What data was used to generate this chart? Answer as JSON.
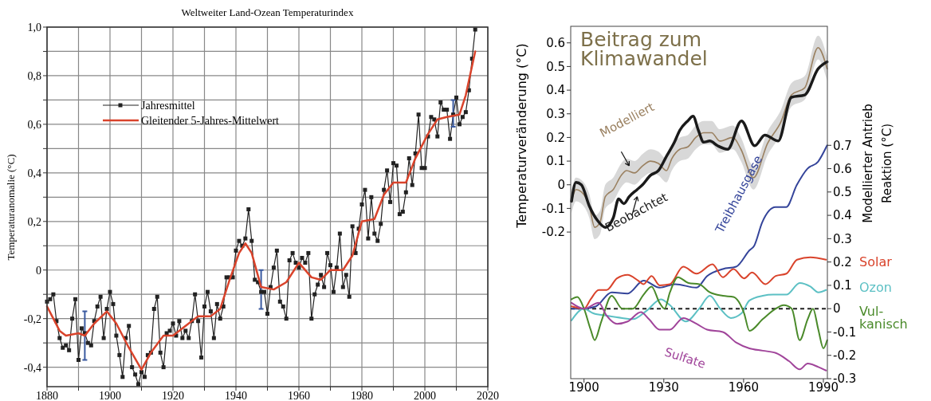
{
  "chart_data": [
    {
      "type": "line",
      "title": "Weltweiter Land-Ozean Temperaturindex",
      "ylabel": "Temperaturanomalie (°C)",
      "xlim": [
        1880,
        2020
      ],
      "ylim": [
        -0.48,
        1.0
      ],
      "xticks": [
        1880,
        {
          "value": 1890,
          "label": null
        },
        1900,
        {
          "value": 1910,
          "label": null
        },
        1920,
        {
          "value": 1930,
          "label": null
        },
        1940,
        {
          "value": 1950,
          "label": null
        },
        1960,
        {
          "value": 1970,
          "label": null
        },
        1980,
        {
          "value": 1990,
          "label": null
        },
        2000,
        {
          "value": 2010,
          "label": null
        },
        2020
      ],
      "yticks": [
        {
          "value": -0.4,
          "label": "-0,4"
        },
        {
          "value": -0.3,
          "label": null
        },
        {
          "value": -0.2,
          "label": "-0,2"
        },
        {
          "value": -0.1,
          "label": null
        },
        0,
        {
          "value": 0.1,
          "label": null
        },
        {
          "value": 0.2,
          "label": "0,2"
        },
        {
          "value": 0.3,
          "label": null
        },
        {
          "value": 0.4,
          "label": "0,4"
        },
        {
          "value": 0.5,
          "label": null
        },
        {
          "value": 0.6,
          "label": "0,6"
        },
        {
          "value": 0.7,
          "label": null
        },
        {
          "value": 0.8,
          "label": "0,8"
        },
        {
          "value": 0.9,
          "label": null
        },
        {
          "value": 1.0,
          "label": "1,0"
        }
      ],
      "grid": true,
      "legend": "top left",
      "series": [
        {
          "name": "Jahresmittel",
          "color": "#222222",
          "marker": "square",
          "x": [
            1880,
            1881,
            1882,
            1883,
            1884,
            1885,
            1886,
            1887,
            1888,
            1889,
            1890,
            1891,
            1892,
            1893,
            1894,
            1895,
            1896,
            1897,
            1898,
            1899,
            1900,
            1901,
            1902,
            1903,
            1904,
            1905,
            1906,
            1907,
            1908,
            1909,
            1910,
            1911,
            1912,
            1913,
            1914,
            1915,
            1916,
            1917,
            1918,
            1919,
            1920,
            1921,
            1922,
            1923,
            1924,
            1925,
            1926,
            1927,
            1928,
            1929,
            1930,
            1931,
            1932,
            1933,
            1934,
            1935,
            1936,
            1937,
            1938,
            1939,
            1940,
            1941,
            1942,
            1943,
            1944,
            1945,
            1946,
            1947,
            1948,
            1949,
            1950,
            1951,
            1952,
            1953,
            1954,
            1955,
            1956,
            1957,
            1958,
            1959,
            1960,
            1961,
            1962,
            1963,
            1964,
            1965,
            1966,
            1967,
            1968,
            1969,
            1970,
            1971,
            1972,
            1973,
            1974,
            1975,
            1976,
            1977,
            1978,
            1979,
            1980,
            1981,
            1982,
            1983,
            1984,
            1985,
            1986,
            1987,
            1988,
            1989,
            1990,
            1991,
            1992,
            1993,
            1994,
            1995,
            1996,
            1997,
            1998,
            1999,
            2000,
            2001,
            2002,
            2003,
            2004,
            2005,
            2006,
            2007,
            2008,
            2009,
            2010,
            2011,
            2012,
            2013,
            2014,
            2015,
            2016
          ],
          "values": [
            -0.13,
            -0.12,
            -0.1,
            -0.21,
            -0.28,
            -0.32,
            -0.31,
            -0.33,
            -0.2,
            -0.12,
            -0.37,
            -0.24,
            -0.26,
            -0.3,
            -0.31,
            -0.21,
            -0.15,
            -0.11,
            -0.28,
            -0.16,
            -0.09,
            -0.14,
            -0.27,
            -0.35,
            -0.44,
            -0.28,
            -0.23,
            -0.4,
            -0.43,
            -0.47,
            -0.42,
            -0.44,
            -0.35,
            -0.34,
            -0.16,
            -0.11,
            -0.34,
            -0.4,
            -0.26,
            -0.25,
            -0.22,
            -0.27,
            -0.21,
            -0.28,
            -0.25,
            -0.28,
            -0.21,
            -0.1,
            -0.21,
            -0.36,
            -0.15,
            -0.09,
            -0.17,
            -0.28,
            -0.14,
            -0.2,
            -0.15,
            -0.03,
            -0.03,
            -0.03,
            0.08,
            0.12,
            0.1,
            0.13,
            0.25,
            0.12,
            -0.04,
            -0.05,
            -0.09,
            -0.09,
            -0.18,
            -0.07,
            0.01,
            0.08,
            -0.13,
            -0.15,
            -0.2,
            0.04,
            0.07,
            0.03,
            0.01,
            0.05,
            0.03,
            0.07,
            -0.2,
            -0.1,
            -0.06,
            -0.02,
            -0.07,
            0.07,
            0.02,
            -0.09,
            0.01,
            0.15,
            -0.07,
            -0.02,
            -0.11,
            0.18,
            0.07,
            0.17,
            0.27,
            0.33,
            0.13,
            0.3,
            0.15,
            0.12,
            0.19,
            0.33,
            0.41,
            0.28,
            0.44,
            0.43,
            0.23,
            0.24,
            0.32,
            0.46,
            0.35,
            0.48,
            0.64,
            0.42,
            0.42,
            0.55,
            0.63,
            0.62,
            0.55,
            0.69,
            0.66,
            0.66,
            0.54,
            0.64,
            0.71,
            0.6,
            0.63,
            0.65,
            0.74,
            0.87,
            0.99
          ],
          "errors": [
            null,
            null,
            null,
            null,
            null,
            null,
            null,
            null,
            null,
            null,
            null,
            null,
            [
              -0.37,
              -0.17
            ],
            null,
            null,
            null,
            null,
            null,
            null,
            null,
            null,
            null,
            null,
            null,
            null,
            null,
            null,
            null,
            null,
            null,
            null,
            null,
            null,
            null,
            null,
            null,
            null,
            null,
            null,
            null,
            null,
            null,
            null,
            null,
            null,
            null,
            null,
            null,
            null,
            null,
            null,
            null,
            null,
            null,
            null,
            null,
            null,
            null,
            null,
            null,
            null,
            null,
            null,
            null,
            null,
            null,
            null,
            null,
            [
              -0.16,
              0.0
            ],
            null,
            null,
            null,
            null,
            null,
            null,
            null,
            null,
            null,
            null,
            null,
            null,
            null,
            null,
            null,
            null,
            null,
            null,
            null,
            null,
            null,
            null,
            null,
            null,
            null,
            null,
            null,
            null,
            null,
            null,
            null,
            null,
            null,
            null,
            null,
            null,
            null,
            null,
            null,
            null,
            null,
            null,
            null,
            null,
            null,
            null,
            null,
            null,
            null,
            null,
            null,
            null,
            null,
            null,
            null,
            null,
            null,
            null,
            null,
            null,
            [
              0.59,
              0.7
            ],
            null,
            null,
            null,
            null,
            null,
            null,
            null
          ]
        },
        {
          "name": "Gleitender 5-Jahres-Mittelwert",
          "color": "#d9432b",
          "marker": "none",
          "x": [
            1880,
            1884,
            1886,
            1890,
            1892,
            1895,
            1899,
            1902,
            1906,
            1910,
            1913,
            1917,
            1920,
            1925,
            1928,
            1932,
            1935,
            1938,
            1941,
            1943,
            1945,
            1948,
            1952,
            1956,
            1960,
            1964,
            1967,
            1970,
            1974,
            1977,
            1980,
            1984,
            1987,
            1990,
            1994,
            1997,
            2001,
            2004,
            2007,
            2011,
            2013,
            2016
          ],
          "values": [
            -0.15,
            -0.25,
            -0.27,
            -0.26,
            -0.27,
            -0.22,
            -0.17,
            -0.22,
            -0.32,
            -0.41,
            -0.34,
            -0.27,
            -0.27,
            -0.22,
            -0.19,
            -0.19,
            -0.16,
            -0.04,
            0.07,
            0.11,
            0.07,
            -0.07,
            -0.08,
            -0.05,
            0.03,
            -0.03,
            -0.04,
            0.0,
            0.0,
            0.06,
            0.2,
            0.21,
            0.31,
            0.36,
            0.36,
            0.46,
            0.56,
            0.62,
            0.63,
            0.64,
            0.72,
            0.9
          ]
        }
      ]
    },
    {
      "type": "line",
      "title": "Beitrag zum\nKlimawandel",
      "ylabel": "Temperaturveränderung (°C)",
      "y2label": "Modellierter Antrieb\nReaktion (°C)",
      "xlim": [
        1895,
        1991.5
      ],
      "ylim": [
        -0.82,
        0.67
      ],
      "y2lim": [
        -0.3,
        1.21
      ],
      "xticks": [
        1900,
        1930,
        1960,
        1990
      ],
      "yticks": [
        -0.2,
        -0.1,
        0,
        0.1,
        0.2,
        0.3,
        0.4,
        0.5,
        0.6
      ],
      "y2ticks": [
        -0.3,
        -0.2,
        -0.1,
        0,
        0.1,
        0.2,
        0.3,
        0.4,
        0.5,
        0.6,
        0.7
      ],
      "grid": false,
      "legend": false,
      "ref_lines": [
        {
          "axis": "y2",
          "value": 0,
          "color": "#222222",
          "line_style": "dashed"
        }
      ],
      "series": [
        {
          "name": "Modelliert",
          "color": "#9a8060",
          "x": [
            1895.3,
            1897,
            1899,
            1902,
            1904,
            1906,
            1908,
            1911,
            1914,
            1916,
            1919,
            1922,
            1925,
            1928,
            1931,
            1933,
            1936,
            1939,
            1942,
            1945,
            1948,
            1951,
            1956,
            1959,
            1963.7,
            1969,
            1974,
            1978,
            1983,
            1988,
            1991.4
          ],
          "values": [
            -0.07,
            -0.02,
            -0.03,
            -0.09,
            -0.18,
            -0.16,
            -0.05,
            -0.02,
            0.04,
            0.06,
            0.05,
            0.08,
            0.1,
            0.09,
            0.06,
            0.11,
            0.15,
            0.16,
            0.2,
            0.22,
            0.22,
            0.185,
            0.2,
            0.15,
            0.03,
            0.175,
            0.265,
            0.38,
            0.41,
            0.58,
            0.49
          ],
          "lower": [
            -0.12,
            -0.07,
            -0.08,
            -0.14,
            -0.23,
            -0.21,
            -0.1,
            -0.07,
            -0.01,
            0.01,
            0.0,
            0.03,
            0.05,
            0.04,
            0.01,
            0.06,
            0.1,
            0.11,
            0.15,
            0.17,
            0.17,
            0.135,
            0.15,
            0.1,
            -0.02,
            0.125,
            0.215,
            0.33,
            0.36,
            0.53,
            0.44
          ],
          "upper": [
            -0.02,
            0.03,
            0.02,
            -0.04,
            -0.13,
            -0.11,
            0.0,
            0.03,
            0.09,
            0.11,
            0.1,
            0.13,
            0.15,
            0.14,
            0.11,
            0.16,
            0.2,
            0.21,
            0.25,
            0.27,
            0.27,
            0.235,
            0.25,
            0.2,
            0.08,
            0.225,
            0.315,
            0.43,
            0.46,
            0.63,
            0.54
          ]
        },
        {
          "name": "Beobachtet",
          "color": "#1a1a1a",
          "x": [
            1895.3,
            1897,
            1899,
            1902,
            1905,
            1908,
            1911,
            1913,
            1915,
            1917,
            1920,
            1922,
            1925,
            1928,
            1931,
            1934,
            1936,
            1939,
            1941,
            1943,
            1945,
            1947.3,
            1950.2,
            1954,
            1959.2,
            1964.2,
            1968,
            1973,
            1978,
            1983,
            1988,
            1991.4
          ],
          "values": [
            -0.07,
            0.01,
            0.0,
            -0.09,
            -0.15,
            -0.18,
            -0.14,
            -0.06,
            -0.08,
            -0.05,
            -0.02,
            0.0,
            0.04,
            0.06,
            0.12,
            0.18,
            0.23,
            0.27,
            0.29,
            0.23,
            0.18,
            0.185,
            0.165,
            0.15,
            0.27,
            0.165,
            0.21,
            0.185,
            0.37,
            0.38,
            0.49,
            0.52
          ]
        },
        {
          "name": "Treibhausgase",
          "color": "#34449a",
          "axis": "y2",
          "x": [
            1895.3,
            1900,
            1904.5,
            1910.4,
            1916.4,
            1922.4,
            1928.4,
            1934.3,
            1942.3,
            1946.3,
            1952.2,
            1957.2,
            1962.2,
            1964,
            1967,
            1972,
            1976,
            1980,
            1984,
            1988,
            1991.4
          ],
          "values": [
            0,
            0,
            0.01,
            0.07,
            0.065,
            0.12,
            0.09,
            0.105,
            0.09,
            0.14,
            0.17,
            0.18,
            0.25,
            0.27,
            0.37,
            0.435,
            0.435,
            0.53,
            0.6,
            0.63,
            0.7
          ]
        },
        {
          "name": "Solar",
          "color": "#d9432b",
          "axis": "y2",
          "x": [
            1895.3,
            1900,
            1902.5,
            1905.5,
            1908.5,
            1912.4,
            1916.4,
            1920.4,
            1922.4,
            1925.4,
            1928.4,
            1932.3,
            1937.3,
            1942.3,
            1948.3,
            1952.2,
            1956.2,
            1960.2,
            1963.2,
            1968.2,
            1972.1,
            1976.1,
            1980.1,
            1985.1,
            1991
          ],
          "values": [
            0.01,
            0,
            0.04,
            0.08,
            0.08,
            0.13,
            0.145,
            0.12,
            0.105,
            0.14,
            0.1,
            0.105,
            0.18,
            0.15,
            0.19,
            0.135,
            0.17,
            0.13,
            0.155,
            0.105,
            0.14,
            0.15,
            0.21,
            0.22,
            0.21
          ]
        },
        {
          "name": "Ozon",
          "color": "#5cc0c4",
          "axis": "y2",
          "x": [
            1895.3,
            1900,
            1903.5,
            1908.5,
            1914.4,
            1918.4,
            1923.4,
            1928.9,
            1932.3,
            1938.3,
            1943.3,
            1947.3,
            1951.2,
            1955.2,
            1959.2,
            1962.2,
            1967.2,
            1971.1,
            1976.1,
            1981.1,
            1985.1,
            1988.1,
            1991
          ],
          "values": [
            -0.05,
            0,
            -0.02,
            -0.03,
            -0.04,
            -0.045,
            -0.01,
            0.04,
            0.015,
            -0.055,
            0.0,
            0.055,
            0.0,
            -0.04,
            -0.02,
            0.035,
            0.055,
            0.06,
            0.06,
            0.11,
            0.095,
            0.07,
            0.08
          ]
        },
        {
          "name": "Vul-kanisch",
          "color": "#4a8a2a",
          "axis": "y2",
          "x": [
            1895.3,
            1897.5,
            1900,
            1902.5,
            1904,
            1906.5,
            1910.4,
            1914.4,
            1918.4,
            1922.4,
            1925.4,
            1928.4,
            1930.3,
            1932.3,
            1935.3,
            1939.3,
            1943.3,
            1947.3,
            1952.2,
            1956.2,
            1960.2,
            1962.2,
            1967.2,
            1972.1,
            1975.1,
            1978.1,
            1981.1,
            1984.1,
            1986.1,
            1988.1,
            1990,
            1991.4
          ],
          "values": [
            0.04,
            0.05,
            0,
            -0.09,
            -0.135,
            -0.055,
            0.055,
            0.0,
            0.0,
            0.06,
            0.095,
            0.025,
            0.0,
            0.07,
            0.135,
            0.11,
            0.105,
            0.07,
            0.055,
            0.05,
            -0.02,
            -0.095,
            -0.045,
            0.0,
            0.015,
            0.0,
            -0.135,
            -0.045,
            0,
            -0.09,
            -0.17,
            -0.135
          ]
        },
        {
          "name": "Sulfate",
          "color": "#a0449a",
          "axis": "y2",
          "x": [
            1895.3,
            1900,
            1905.5,
            1908.5,
            1912.4,
            1916.4,
            1921.4,
            1924.4,
            1928.4,
            1932.3,
            1937.3,
            1942.3,
            1946.3,
            1952.2,
            1957.2,
            1962.2,
            1967.2,
            1972.1,
            1977.1,
            1981.1,
            1984.1,
            1988.1,
            1991
          ],
          "values": [
            0.025,
            0,
            0.025,
            -0.03,
            -0.065,
            -0.055,
            -0.015,
            -0.045,
            -0.09,
            -0.09,
            -0.04,
            -0.065,
            -0.09,
            -0.1,
            -0.145,
            -0.17,
            -0.18,
            -0.19,
            -0.225,
            -0.26,
            -0.235,
            -0.25,
            -0.265
          ]
        }
      ]
    }
  ]
}
